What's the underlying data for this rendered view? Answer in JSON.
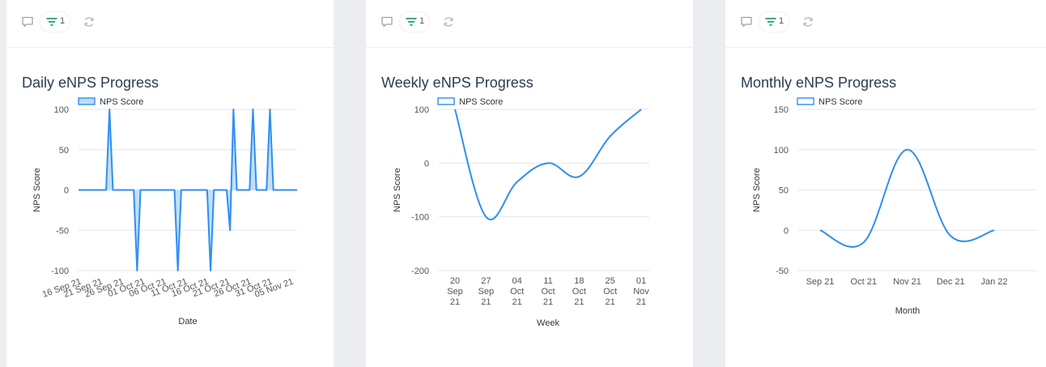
{
  "panels": [
    {
      "toolbar": {
        "comment_icon": "comment-icon",
        "filter_icon": "filter-icon",
        "filter_count": "1",
        "refresh_icon": "refresh-icon"
      },
      "title": "Daily eNPS Progress"
    },
    {
      "toolbar": {
        "comment_icon": "comment-icon",
        "filter_icon": "filter-icon",
        "filter_count": "1",
        "refresh_icon": "refresh-icon"
      },
      "title": "Weekly eNPS Progress"
    },
    {
      "toolbar": {
        "comment_icon": "comment-icon",
        "filter_icon": "filter-icon",
        "filter_count": "1",
        "refresh_icon": "refresh-icon"
      },
      "title": "Monthly eNPS Progress"
    }
  ],
  "colors": {
    "line": "#2f8ff0",
    "fill": "#bcdcf7",
    "grid": "#e3e6ea",
    "axis": "#555555",
    "title": "#2b3c4f",
    "filter_icon": "#22a36b"
  },
  "chart_data": [
    {
      "type": "area",
      "title": "Daily eNPS Progress",
      "xlabel": "Date",
      "ylabel": "NPS Score",
      "legend": "top-left",
      "series": [
        {
          "name": "NPS Score"
        }
      ],
      "x_start": "2021-09-16",
      "x_tick_labels": [
        "16 Sep 21",
        "21 Sep 21",
        "26 Sep 21",
        "01 Oct 21",
        "06 Oct 21",
        "11 Oct 21",
        "16 Oct 21",
        "21 Oct 21",
        "26 Oct 21",
        "31 Oct 21",
        "05 Nov 21"
      ],
      "x_tick_days": [
        0,
        5,
        10,
        15,
        20,
        25,
        30,
        35,
        40,
        45,
        50
      ],
      "yticks": [
        100,
        50,
        0,
        -50,
        -100
      ],
      "ylim": [
        -100,
        100
      ],
      "xlim_days": [
        0,
        51.5
      ],
      "points": [
        {
          "day": 0,
          "y": 0
        },
        {
          "day": 6.5,
          "y": 0
        },
        {
          "day": 7.3,
          "y": 100
        },
        {
          "day": 8.1,
          "y": 0
        },
        {
          "day": 13.0,
          "y": 0
        },
        {
          "day": 13.8,
          "y": -100
        },
        {
          "day": 14.6,
          "y": 0
        },
        {
          "day": 22.6,
          "y": 0
        },
        {
          "day": 23.4,
          "y": -100
        },
        {
          "day": 24.2,
          "y": 0
        },
        {
          "day": 30.3,
          "y": 0
        },
        {
          "day": 31.1,
          "y": -100
        },
        {
          "day": 31.9,
          "y": 0
        },
        {
          "day": 34.9,
          "y": 0
        },
        {
          "day": 35.7,
          "y": -50
        },
        {
          "day": 36.5,
          "y": 100
        },
        {
          "day": 37.3,
          "y": 0
        },
        {
          "day": 40.3,
          "y": 0
        },
        {
          "day": 41.1,
          "y": 100
        },
        {
          "day": 41.9,
          "y": 0
        },
        {
          "day": 44.3,
          "y": 0
        },
        {
          "day": 45.1,
          "y": 100
        },
        {
          "day": 45.9,
          "y": 0
        },
        {
          "day": 51.5,
          "y": 0
        }
      ]
    },
    {
      "type": "line",
      "title": "Weekly eNPS Progress",
      "xlabel": "Week",
      "ylabel": "NPS Score",
      "legend": "top-left",
      "series": [
        {
          "name": "NPS Score",
          "values": [
            100,
            -100,
            -35,
            0,
            -25,
            50,
            100
          ]
        }
      ],
      "categories": [
        "20 Sep 21",
        "27 Sep 21",
        "04 Oct 21",
        "11 Oct 21",
        "18 Oct 21",
        "25 Oct 21",
        "01 Nov 21"
      ],
      "category_lines": [
        [
          "20",
          "Sep",
          "21"
        ],
        [
          "27",
          "Sep",
          "21"
        ],
        [
          "04",
          "Oct",
          "21"
        ],
        [
          "11",
          "Oct",
          "21"
        ],
        [
          "18",
          "Oct",
          "21"
        ],
        [
          "25",
          "Oct",
          "21"
        ],
        [
          "01",
          "Nov",
          "21"
        ]
      ],
      "yticks": [
        100,
        0,
        -100,
        -200
      ],
      "ylim": [
        -200,
        100
      ]
    },
    {
      "type": "line",
      "title": "Monthly eNPS Progress",
      "xlabel": "Month",
      "ylabel": "NPS Score",
      "legend": "top-left",
      "series": [
        {
          "name": "NPS Score",
          "values": [
            0,
            -15,
            100,
            -7,
            0
          ]
        }
      ],
      "categories": [
        "Sep 21",
        "Oct 21",
        "Nov 21",
        "Dec 21",
        "Jan 22"
      ],
      "yticks": [
        150,
        100,
        50,
        0,
        -50
      ],
      "ylim": [
        -50,
        150
      ]
    }
  ]
}
